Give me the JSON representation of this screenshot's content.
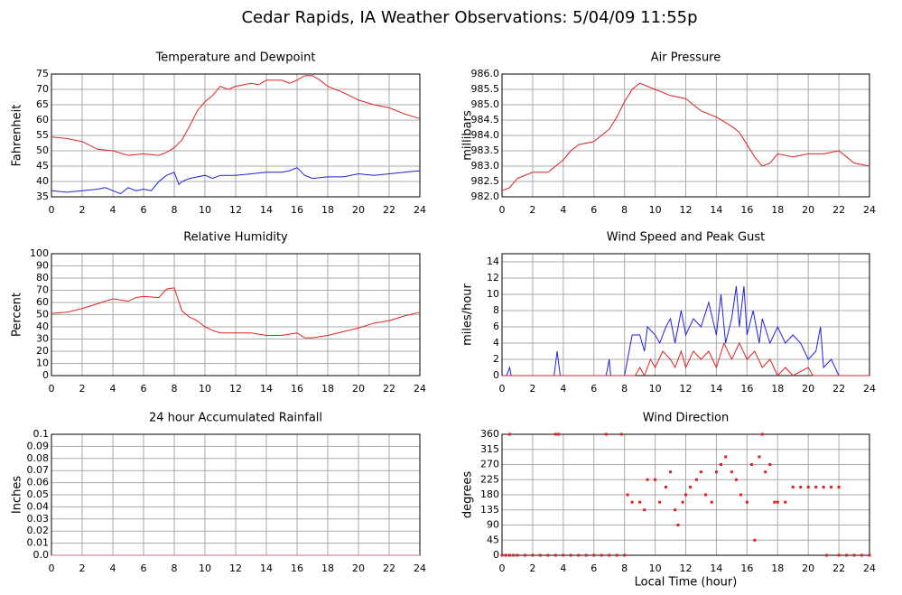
{
  "title": "Cedar Rapids, IA Weather Observations: 5/04/09 11:55p",
  "chart_data": [
    {
      "type": "line",
      "title": "Temperature and Dewpoint",
      "ylabel": "Fahrenheit",
      "series": [
        {
          "color": "#e02020",
          "x": [
            0,
            1,
            2,
            3,
            4,
            5,
            6,
            7,
            7.5,
            8,
            8.5,
            9,
            9.5,
            10,
            10.5,
            11,
            11.5,
            12,
            13,
            13.5,
            14,
            15,
            15.5,
            16,
            16.5,
            17,
            17.5,
            18,
            19,
            20,
            21,
            22,
            23,
            24
          ],
          "values": [
            54.5,
            54,
            53,
            50.5,
            50,
            48.5,
            49,
            48.5,
            49.5,
            51,
            53.5,
            58,
            63,
            66,
            68,
            71,
            70,
            71,
            72,
            71.5,
            73,
            73,
            72,
            73,
            74.5,
            74.5,
            73,
            71,
            69,
            66.5,
            65,
            64,
            62,
            60.5
          ]
        },
        {
          "color": "#2020e0",
          "x": [
            0,
            1,
            2,
            3,
            3.5,
            4,
            4.5,
            5,
            5.5,
            6,
            6.5,
            7,
            7.5,
            8,
            8.3,
            8.5,
            9,
            10,
            10.5,
            11,
            12,
            13,
            14,
            15,
            15.5,
            16,
            16.5,
            17,
            18,
            19,
            20,
            21,
            22,
            23,
            24
          ],
          "values": [
            37,
            36.5,
            37,
            37.5,
            38,
            37,
            36,
            38,
            37,
            37.5,
            37,
            40,
            42,
            43,
            39,
            40,
            41,
            42,
            41,
            42,
            42,
            42.5,
            43,
            43,
            43.5,
            44.5,
            42,
            41,
            41.5,
            41.5,
            42.5,
            42,
            42.5,
            43,
            43.5
          ]
        }
      ],
      "xlim": [
        0,
        24
      ],
      "xticks": [
        0,
        2,
        4,
        6,
        8,
        10,
        12,
        14,
        16,
        18,
        20,
        22,
        24
      ],
      "ylim": [
        35,
        75
      ],
      "yticks": [
        35,
        40,
        45,
        50,
        55,
        60,
        65,
        70,
        75
      ],
      "grid": true
    },
    {
      "type": "line",
      "title": "Air Pressure",
      "ylabel": "millibars",
      "series": [
        {
          "color": "#e02020",
          "x": [
            0,
            0.5,
            1,
            2,
            3,
            3.5,
            4,
            4.5,
            5,
            6,
            7,
            7.5,
            8,
            8.5,
            9,
            9.5,
            10,
            11,
            12,
            13,
            14,
            15,
            15.5,
            16,
            16.5,
            17,
            17.5,
            18,
            19,
            20,
            21,
            22,
            22.5,
            23,
            24
          ],
          "values": [
            982.2,
            982.3,
            982.6,
            982.8,
            982.8,
            983.0,
            983.2,
            983.5,
            983.7,
            983.8,
            984.2,
            984.6,
            985.1,
            985.5,
            985.7,
            985.6,
            985.5,
            985.3,
            985.2,
            984.8,
            984.6,
            984.3,
            984.1,
            983.7,
            983.3,
            983.0,
            983.1,
            983.4,
            983.3,
            983.4,
            983.4,
            983.5,
            983.3,
            983.1,
            983.0
          ]
        }
      ],
      "xlim": [
        0,
        24
      ],
      "xticks": [
        0,
        2,
        4,
        6,
        8,
        10,
        12,
        14,
        16,
        18,
        20,
        22,
        24
      ],
      "ylim": [
        982,
        986
      ],
      "yticks": [
        {
          "value": 982,
          "label": "982.0"
        },
        982.5,
        {
          "value": 983,
          "label": "983.0"
        },
        983.5,
        {
          "value": 984,
          "label": "984.0"
        },
        984.5,
        {
          "value": 985,
          "label": "985.0"
        },
        985.5,
        {
          "value": 986,
          "label": "986.0"
        }
      ],
      "grid": true
    },
    {
      "type": "line",
      "title": "Relative Humidity",
      "ylabel": "Percent",
      "series": [
        {
          "color": "#e02020",
          "x": [
            0,
            1,
            2,
            3,
            4,
            5,
            5.5,
            6,
            7,
            7.5,
            8,
            8.5,
            9,
            9.5,
            10,
            10.5,
            11,
            12,
            13,
            14,
            15,
            16,
            16.5,
            17,
            18,
            19,
            20,
            21,
            22,
            23,
            24
          ],
          "values": [
            51,
            52,
            55,
            59,
            63,
            61,
            64,
            65,
            64,
            71,
            72,
            53,
            48,
            45,
            40,
            37,
            35,
            35,
            35,
            33,
            33,
            35,
            31,
            31,
            33,
            36,
            39,
            43,
            45,
            49,
            52
          ]
        }
      ],
      "xlim": [
        0,
        24
      ],
      "xticks": [
        0,
        2,
        4,
        6,
        8,
        10,
        12,
        14,
        16,
        18,
        20,
        22,
        24
      ],
      "ylim": [
        0,
        100
      ],
      "yticks": [
        0,
        10,
        20,
        30,
        40,
        50,
        60,
        70,
        80,
        90,
        100
      ],
      "grid": true
    },
    {
      "type": "line",
      "title": "Wind Speed and Peak Gust",
      "ylabel": "miles/hour",
      "series": [
        {
          "color": "#2020e0",
          "x": [
            0,
            0.3,
            0.5,
            0.6,
            3.4,
            3.6,
            3.8,
            6.8,
            7,
            7.1,
            8,
            8.2,
            8.5,
            9,
            9.3,
            9.5,
            10,
            10.3,
            10.7,
            11,
            11.3,
            11.7,
            12,
            12.5,
            13,
            13.5,
            14,
            14.3,
            14.6,
            15,
            15.3,
            15.5,
            15.8,
            16,
            16.4,
            16.8,
            17,
            17.5,
            18,
            18.5,
            19,
            19.5,
            20,
            20.5,
            20.8,
            21,
            21.5,
            22,
            24
          ],
          "values": [
            0,
            0,
            1,
            0,
            0,
            3,
            0,
            0,
            2,
            0,
            0,
            2,
            5,
            5,
            3,
            6,
            5,
            4,
            6,
            7,
            4,
            8,
            5,
            7,
            6,
            9,
            5,
            10,
            4,
            7,
            11,
            6,
            11,
            5,
            8,
            4,
            7,
            4,
            6,
            4,
            5,
            4,
            2,
            3,
            6,
            1,
            2,
            0,
            0
          ]
        },
        {
          "color": "#e02020",
          "x": [
            0,
            8,
            8.7,
            9,
            9.3,
            9.7,
            10,
            10.5,
            11,
            11.3,
            11.7,
            12,
            12.5,
            13,
            13.5,
            14,
            14.5,
            15,
            15.5,
            16,
            16.5,
            17,
            17.5,
            18,
            18.5,
            19,
            20,
            20.3,
            24
          ],
          "values": [
            0,
            0,
            0,
            1,
            0,
            2,
            1,
            3,
            2,
            1,
            3,
            1,
            3,
            2,
            3,
            1,
            4,
            2,
            4,
            2,
            3,
            1,
            2,
            0,
            1,
            0,
            1,
            0,
            0
          ]
        }
      ],
      "xlim": [
        0,
        24
      ],
      "xticks": [
        0,
        2,
        4,
        6,
        8,
        10,
        12,
        14,
        16,
        18,
        20,
        22,
        24
      ],
      "ylim": [
        0,
        15
      ],
      "yticks": [
        0,
        2,
        4,
        6,
        8,
        10,
        12,
        14
      ],
      "grid": true
    },
    {
      "type": "line",
      "title": "24 hour Accumulated Rainfall",
      "ylabel": "Inches",
      "series": [
        {
          "color": "#e06080",
          "x": [
            0,
            24
          ],
          "values": [
            0,
            0
          ]
        }
      ],
      "xlim": [
        0,
        24
      ],
      "xticks": [
        0,
        2,
        4,
        6,
        8,
        10,
        12,
        14,
        16,
        18,
        20,
        22,
        24
      ],
      "ylim": [
        0,
        0.1
      ],
      "yticks": [
        {
          "value": 0,
          "label": "0.0"
        },
        0.01,
        0.02,
        0.03,
        0.04,
        0.05,
        0.06,
        0.07,
        0.08,
        0.09,
        0.1
      ],
      "grid": true
    },
    {
      "type": "scatter",
      "title": "Wind Direction",
      "ylabel": "degrees",
      "xlabel": "Local Time (hour)",
      "color": "#e02020",
      "x": [
        0,
        0.25,
        0.5,
        0.75,
        1,
        1.5,
        2,
        2.5,
        3,
        3.5,
        0.5,
        3.5,
        3.7,
        4,
        4.5,
        5,
        5.5,
        6,
        6.5,
        7,
        7.5,
        8,
        6.8,
        7.8,
        8.2,
        8.5,
        9,
        9.3,
        9.5,
        10,
        10.3,
        10.7,
        11,
        11.3,
        11.5,
        11.8,
        12,
        12.3,
        12.7,
        13,
        13.3,
        13.7,
        14,
        14.3,
        14.6,
        15,
        15.3,
        15.6,
        16,
        16.3,
        16.5,
        16.8,
        17,
        17.2,
        17.5,
        17.8,
        18,
        18.5,
        19,
        19.5,
        20,
        20.5,
        21,
        21.5,
        22,
        21.2,
        22,
        22.5,
        23,
        23.5,
        24
      ],
      "values": [
        0,
        0,
        0,
        0,
        0,
        0,
        0,
        0,
        0,
        0,
        360,
        360,
        360,
        0,
        0,
        0,
        0,
        0,
        0,
        0,
        0,
        0,
        360,
        360,
        180,
        158,
        158,
        135,
        225,
        225,
        158,
        203,
        248,
        135,
        90,
        158,
        180,
        203,
        225,
        248,
        180,
        158,
        248,
        270,
        293,
        248,
        225,
        180,
        158,
        270,
        45,
        293,
        360,
        248,
        270,
        158,
        158,
        158,
        203,
        203,
        203,
        203,
        203,
        203,
        203,
        0,
        0,
        0,
        0,
        0,
        0
      ],
      "xlim": [
        0,
        24
      ],
      "xticks": [
        0,
        2,
        4,
        6,
        8,
        10,
        12,
        14,
        16,
        18,
        20,
        22,
        24
      ],
      "ylim": [
        0,
        360
      ],
      "yticks": [
        0,
        45,
        90,
        135,
        180,
        225,
        270,
        315,
        360
      ],
      "grid": true
    }
  ]
}
